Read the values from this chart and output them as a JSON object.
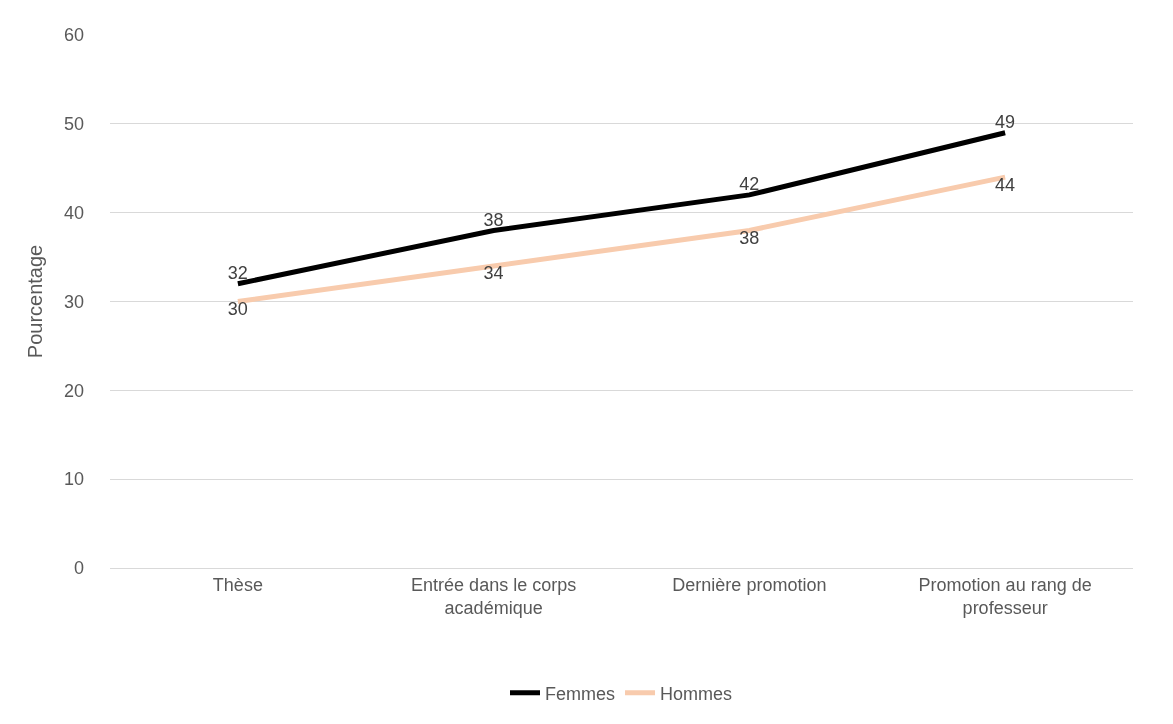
{
  "chart_data": {
    "type": "line",
    "ylabel": "Pourcentage",
    "categories": [
      "Thèse",
      "Entrée dans le corps académique",
      "Dernière promotion",
      "Promotion au rang de professeur"
    ],
    "series": [
      {
        "name": "Femmes",
        "color": "#000000",
        "values": [
          32,
          38,
          42,
          49
        ]
      },
      {
        "name": "Hommes",
        "color": "#f8cbad",
        "values": [
          30,
          34,
          38,
          44
        ]
      }
    ],
    "ylim": [
      0,
      60
    ],
    "yticks": [
      0,
      10,
      20,
      30,
      40,
      50,
      60
    ],
    "grid": "y",
    "legend": "bottom",
    "data_labels": true,
    "marker": "none",
    "line_style": "solid"
  }
}
